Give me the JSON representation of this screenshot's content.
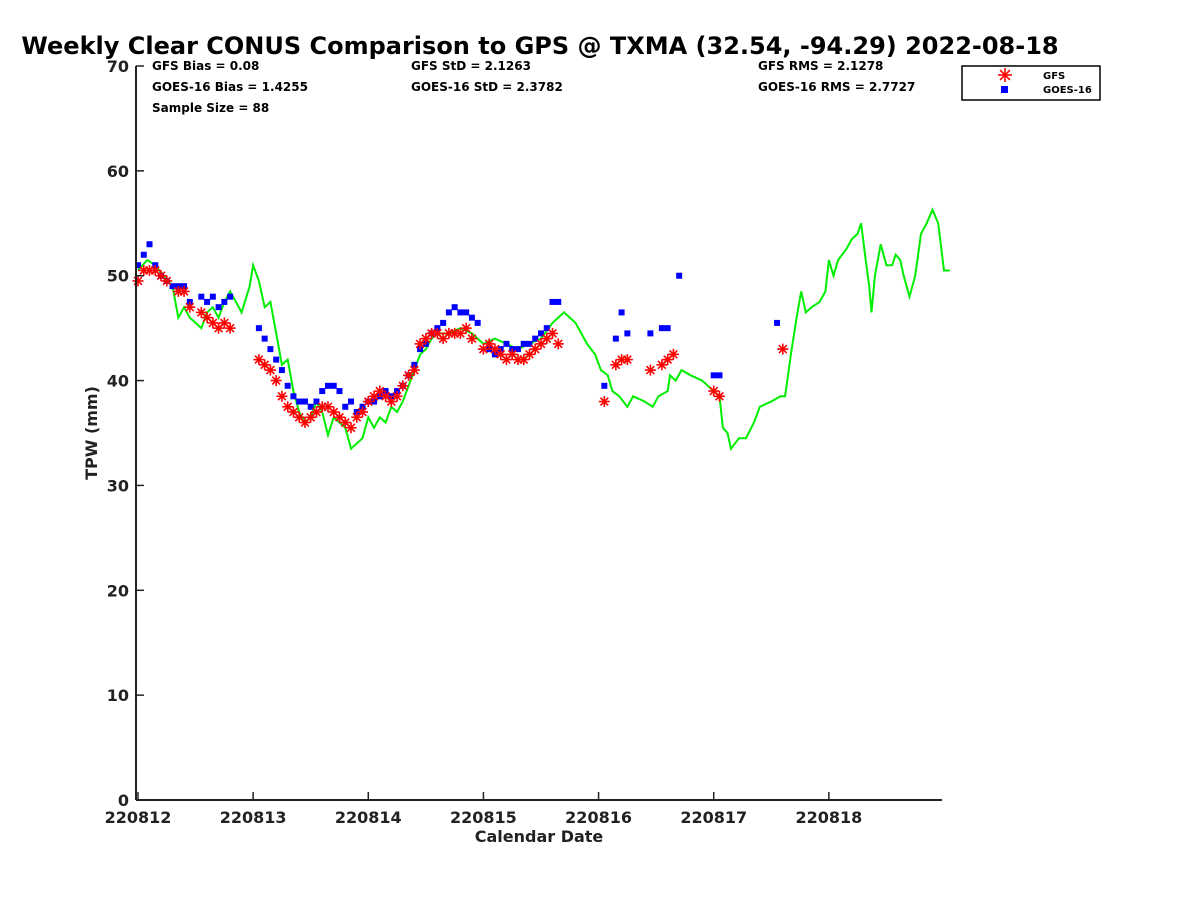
{
  "chart_data": {
    "type": "line",
    "title": "Weekly Clear CONUS Comparison to GPS @ TXMA (32.54, -94.29) 2022-08-18",
    "xlabel": "Calendar Date",
    "ylabel": "TPW (mm)",
    "xlim": [
      0,
      7
    ],
    "ylim": [
      0,
      70
    ],
    "x_ticks": [
      {
        "value": 0,
        "label": "220812"
      },
      {
        "value": 1,
        "label": "220813"
      },
      {
        "value": 2,
        "label": "220814"
      },
      {
        "value": 3,
        "label": "220815"
      },
      {
        "value": 4,
        "label": "220816"
      },
      {
        "value": 5,
        "label": "220817"
      },
      {
        "value": 6,
        "label": "220818"
      }
    ],
    "y_ticks": [
      0,
      10,
      20,
      30,
      40,
      50,
      60,
      70
    ],
    "stats": {
      "gfs_bias": "GFS Bias = 0.08",
      "goes_bias": "GOES-16 Bias = 1.4255",
      "sample_size": "Sample Size = 88",
      "gfs_std": "GFS StD = 2.1263",
      "goes_std": "GOES-16 StD = 2.3782",
      "gfs_rms": "GFS RMS = 2.1278",
      "goes_rms": "GOES-16 RMS = 2.7727"
    },
    "legend": {
      "placement": "top-right",
      "entries": [
        {
          "label": "GFS",
          "marker": "asterisk",
          "color": "#ff0000"
        },
        {
          "label": "GOES-16",
          "marker": "square",
          "color": "#0000ff"
        }
      ]
    },
    "series": [
      {
        "name": "GPS",
        "color": "#00ee00",
        "style": "line",
        "points": [
          [
            0.0,
            50.5
          ],
          [
            0.08,
            51.5
          ],
          [
            0.15,
            51.0
          ],
          [
            0.22,
            50.0
          ],
          [
            0.3,
            49.0
          ],
          [
            0.35,
            46.0
          ],
          [
            0.4,
            47.0
          ],
          [
            0.45,
            46.0
          ],
          [
            0.5,
            45.5
          ],
          [
            0.55,
            45.0
          ],
          [
            0.6,
            46.5
          ],
          [
            0.65,
            47.0
          ],
          [
            0.7,
            46.0
          ],
          [
            0.75,
            47.5
          ],
          [
            0.8,
            48.5
          ],
          [
            0.85,
            47.5
          ],
          [
            0.9,
            46.5
          ],
          [
            0.97,
            49.0
          ],
          [
            1.0,
            51.0
          ],
          [
            1.05,
            49.5
          ],
          [
            1.1,
            47.0
          ],
          [
            1.15,
            47.5
          ],
          [
            1.2,
            44.5
          ],
          [
            1.25,
            41.5
          ],
          [
            1.3,
            42.0
          ],
          [
            1.35,
            39.0
          ],
          [
            1.4,
            37.0
          ],
          [
            1.45,
            36.0
          ],
          [
            1.5,
            36.5
          ],
          [
            1.55,
            38.0
          ],
          [
            1.6,
            37.0
          ],
          [
            1.65,
            34.8
          ],
          [
            1.7,
            36.5
          ],
          [
            1.75,
            36.0
          ],
          [
            1.8,
            35.5
          ],
          [
            1.85,
            33.5
          ],
          [
            1.9,
            34.0
          ],
          [
            1.95,
            34.5
          ],
          [
            2.0,
            36.5
          ],
          [
            2.05,
            35.5
          ],
          [
            2.1,
            36.5
          ],
          [
            2.15,
            36.0
          ],
          [
            2.2,
            37.5
          ],
          [
            2.25,
            37.0
          ],
          [
            2.3,
            38.0
          ],
          [
            2.35,
            39.5
          ],
          [
            2.4,
            41.0
          ],
          [
            2.45,
            42.5
          ],
          [
            2.5,
            43.0
          ],
          [
            2.55,
            44.0
          ],
          [
            2.6,
            44.5
          ],
          [
            2.7,
            44.5
          ],
          [
            2.8,
            45.0
          ],
          [
            2.9,
            44.5
          ],
          [
            3.0,
            43.5
          ],
          [
            3.1,
            44.0
          ],
          [
            3.2,
            43.5
          ],
          [
            3.3,
            43.0
          ],
          [
            3.4,
            43.5
          ],
          [
            3.5,
            44.0
          ],
          [
            3.6,
            45.5
          ],
          [
            3.7,
            46.5
          ],
          [
            3.8,
            45.5
          ],
          [
            3.9,
            43.5
          ],
          [
            3.97,
            42.5
          ],
          [
            4.02,
            41.0
          ],
          [
            4.08,
            40.5
          ],
          [
            4.12,
            39.0
          ],
          [
            4.18,
            38.5
          ],
          [
            4.25,
            37.5
          ],
          [
            4.3,
            38.5
          ],
          [
            4.4,
            38.0
          ],
          [
            4.47,
            37.5
          ],
          [
            4.52,
            38.5
          ],
          [
            4.6,
            39.0
          ],
          [
            4.62,
            40.5
          ],
          [
            4.67,
            40.0
          ],
          [
            4.72,
            41.0
          ],
          [
            4.8,
            40.5
          ],
          [
            4.9,
            40.0
          ],
          [
            5.0,
            39.0
          ],
          [
            5.05,
            38.5
          ],
          [
            5.08,
            35.5
          ],
          [
            5.12,
            35.0
          ],
          [
            5.15,
            33.5
          ],
          [
            5.22,
            34.5
          ],
          [
            5.28,
            34.5
          ],
          [
            5.35,
            36.0
          ],
          [
            5.4,
            37.5
          ],
          [
            5.5,
            38.0
          ],
          [
            5.58,
            38.5
          ],
          [
            5.62,
            38.5
          ],
          [
            5.67,
            42.5
          ],
          [
            5.72,
            46.0
          ],
          [
            5.76,
            48.5
          ],
          [
            5.8,
            46.5
          ],
          [
            5.85,
            47.0
          ],
          [
            5.92,
            47.5
          ],
          [
            5.97,
            48.5
          ],
          [
            6.0,
            51.5
          ],
          [
            6.04,
            50.0
          ],
          [
            6.08,
            51.5
          ],
          [
            6.15,
            52.5
          ],
          [
            6.2,
            53.5
          ],
          [
            6.25,
            54.0
          ],
          [
            6.28,
            55.0
          ],
          [
            6.32,
            51.5
          ],
          [
            6.35,
            49.0
          ],
          [
            6.37,
            46.5
          ],
          [
            6.4,
            50.0
          ],
          [
            6.45,
            53.0
          ],
          [
            6.5,
            51.0
          ],
          [
            6.55,
            51.0
          ],
          [
            6.58,
            52.0
          ],
          [
            6.62,
            51.5
          ],
          [
            6.65,
            50.0
          ],
          [
            6.7,
            48.0
          ],
          [
            6.75,
            50.0
          ],
          [
            6.8,
            54.0
          ],
          [
            6.85,
            55.0
          ],
          [
            6.9,
            56.3
          ],
          [
            6.95,
            55.0
          ],
          [
            7.0,
            50.5
          ],
          [
            7.05,
            50.5
          ]
        ]
      },
      {
        "name": "GFS",
        "color": "#ff0000",
        "style": "asterisk",
        "points": [
          [
            0.0,
            49.5
          ],
          [
            0.05,
            50.5
          ],
          [
            0.1,
            50.5
          ],
          [
            0.15,
            50.5
          ],
          [
            0.2,
            50.0
          ],
          [
            0.25,
            49.5
          ],
          [
            0.35,
            48.5
          ],
          [
            0.4,
            48.5
          ],
          [
            0.45,
            47.0
          ],
          [
            0.55,
            46.5
          ],
          [
            0.6,
            46.0
          ],
          [
            0.65,
            45.5
          ],
          [
            0.7,
            45.0
          ],
          [
            0.75,
            45.5
          ],
          [
            0.8,
            45.0
          ],
          [
            1.05,
            42.0
          ],
          [
            1.1,
            41.5
          ],
          [
            1.15,
            41.0
          ],
          [
            1.2,
            40.0
          ],
          [
            1.25,
            38.5
          ],
          [
            1.3,
            37.5
          ],
          [
            1.35,
            37.0
          ],
          [
            1.4,
            36.5
          ],
          [
            1.45,
            36.0
          ],
          [
            1.5,
            36.5
          ],
          [
            1.55,
            37.0
          ],
          [
            1.6,
            37.5
          ],
          [
            1.65,
            37.5
          ],
          [
            1.7,
            37.0
          ],
          [
            1.75,
            36.5
          ],
          [
            1.8,
            36.0
          ],
          [
            1.85,
            35.5
          ],
          [
            1.9,
            36.5
          ],
          [
            1.95,
            37.0
          ],
          [
            2.0,
            38.0
          ],
          [
            2.05,
            38.5
          ],
          [
            2.1,
            39.0
          ],
          [
            2.15,
            38.5
          ],
          [
            2.2,
            38.0
          ],
          [
            2.25,
            38.5
          ],
          [
            2.3,
            39.5
          ],
          [
            2.35,
            40.5
          ],
          [
            2.4,
            41.0
          ],
          [
            2.45,
            43.5
          ],
          [
            2.5,
            44.0
          ],
          [
            2.55,
            44.5
          ],
          [
            2.6,
            44.5
          ],
          [
            2.65,
            44.0
          ],
          [
            2.7,
            44.5
          ],
          [
            2.75,
            44.5
          ],
          [
            2.8,
            44.5
          ],
          [
            2.85,
            45.0
          ],
          [
            2.9,
            44.0
          ],
          [
            3.0,
            43.0
          ],
          [
            3.05,
            43.5
          ],
          [
            3.1,
            43.0
          ],
          [
            3.15,
            42.5
          ],
          [
            3.2,
            42.0
          ],
          [
            3.25,
            42.5
          ],
          [
            3.3,
            42.0
          ],
          [
            3.35,
            42.0
          ],
          [
            3.4,
            42.5
          ],
          [
            3.45,
            43.0
          ],
          [
            3.5,
            43.5
          ],
          [
            3.55,
            44.0
          ],
          [
            3.6,
            44.5
          ],
          [
            3.65,
            43.5
          ],
          [
            4.05,
            38.0
          ],
          [
            4.15,
            41.5
          ],
          [
            4.2,
            42.0
          ],
          [
            4.25,
            42.0
          ],
          [
            4.45,
            41.0
          ],
          [
            4.55,
            41.5
          ],
          [
            4.6,
            42.0
          ],
          [
            4.65,
            42.5
          ],
          [
            5.0,
            39.0
          ],
          [
            5.05,
            38.5
          ],
          [
            5.6,
            43.0
          ]
        ]
      },
      {
        "name": "GOES-16",
        "color": "#0000ff",
        "style": "square",
        "points": [
          [
            0.0,
            51.0
          ],
          [
            0.05,
            52.0
          ],
          [
            0.1,
            53.0
          ],
          [
            0.15,
            51.0
          ],
          [
            0.2,
            50.0
          ],
          [
            0.25,
            49.5
          ],
          [
            0.3,
            49.0
          ],
          [
            0.35,
            49.0
          ],
          [
            0.4,
            49.0
          ],
          [
            0.45,
            47.5
          ],
          [
            0.55,
            48.0
          ],
          [
            0.6,
            47.5
          ],
          [
            0.65,
            48.0
          ],
          [
            0.7,
            47.0
          ],
          [
            0.75,
            47.5
          ],
          [
            0.8,
            48.0
          ],
          [
            1.05,
            45.0
          ],
          [
            1.1,
            44.0
          ],
          [
            1.15,
            43.0
          ],
          [
            1.2,
            42.0
          ],
          [
            1.25,
            41.0
          ],
          [
            1.3,
            39.5
          ],
          [
            1.35,
            38.5
          ],
          [
            1.4,
            38.0
          ],
          [
            1.45,
            38.0
          ],
          [
            1.5,
            37.5
          ],
          [
            1.55,
            38.0
          ],
          [
            1.6,
            39.0
          ],
          [
            1.65,
            39.5
          ],
          [
            1.7,
            39.5
          ],
          [
            1.75,
            39.0
          ],
          [
            1.8,
            37.5
          ],
          [
            1.85,
            38.0
          ],
          [
            1.9,
            37.0
          ],
          [
            1.95,
            37.5
          ],
          [
            2.0,
            38.0
          ],
          [
            2.05,
            38.0
          ],
          [
            2.1,
            38.5
          ],
          [
            2.15,
            39.0
          ],
          [
            2.2,
            38.5
          ],
          [
            2.25,
            39.0
          ],
          [
            2.3,
            39.5
          ],
          [
            2.35,
            40.5
          ],
          [
            2.4,
            41.5
          ],
          [
            2.45,
            43.0
          ],
          [
            2.5,
            43.5
          ],
          [
            2.55,
            44.5
          ],
          [
            2.6,
            45.0
          ],
          [
            2.65,
            45.5
          ],
          [
            2.7,
            46.5
          ],
          [
            2.75,
            47.0
          ],
          [
            2.8,
            46.5
          ],
          [
            2.85,
            46.5
          ],
          [
            2.9,
            46.0
          ],
          [
            2.95,
            45.5
          ],
          [
            3.05,
            43.0
          ],
          [
            3.1,
            42.5
          ],
          [
            3.15,
            43.0
          ],
          [
            3.2,
            43.5
          ],
          [
            3.25,
            43.0
          ],
          [
            3.3,
            43.0
          ],
          [
            3.35,
            43.5
          ],
          [
            3.4,
            43.5
          ],
          [
            3.45,
            44.0
          ],
          [
            3.5,
            44.5
          ],
          [
            3.55,
            45.0
          ],
          [
            3.6,
            47.5
          ],
          [
            3.65,
            47.5
          ],
          [
            4.05,
            39.5
          ],
          [
            4.15,
            44.0
          ],
          [
            4.2,
            46.5
          ],
          [
            4.25,
            44.5
          ],
          [
            4.45,
            44.5
          ],
          [
            4.55,
            45.0
          ],
          [
            4.6,
            45.0
          ],
          [
            4.7,
            50.0
          ],
          [
            5.0,
            40.5
          ],
          [
            5.05,
            40.5
          ],
          [
            5.55,
            45.5
          ]
        ]
      }
    ]
  }
}
